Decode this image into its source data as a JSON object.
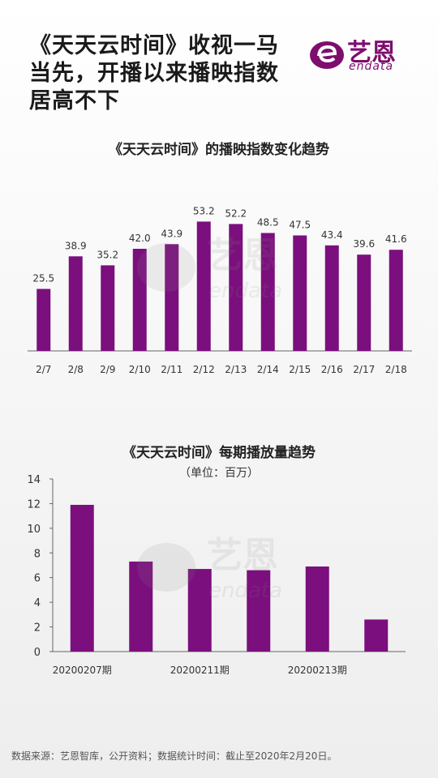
{
  "header": {
    "title": "《天天云时间》收视一马\n当先，开播以来播映指数\n居高不下",
    "logo_cn": "艺恩",
    "logo_en": "endata"
  },
  "colors": {
    "bar": "#7b0f7d",
    "brand": "#7d0e6e",
    "axis": "#666666"
  },
  "chart_data": [
    {
      "type": "bar",
      "title": "《天天云时间》的播映指数变化趋势",
      "categories": [
        "2/7",
        "2/8",
        "2/9",
        "2/10",
        "2/11",
        "2/12",
        "2/13",
        "2/14",
        "2/15",
        "2/16",
        "2/17",
        "2/18"
      ],
      "values": [
        25.5,
        38.9,
        35.2,
        42.0,
        43.9,
        53.2,
        52.2,
        48.5,
        47.5,
        43.4,
        39.6,
        41.6
      ],
      "value_labels": [
        "25.5",
        "38.9",
        "35.2",
        "42.0",
        "43.9",
        "53.2",
        "52.2",
        "48.5",
        "47.5",
        "43.4",
        "39.6",
        "41.6"
      ],
      "ylim": [
        0,
        60
      ],
      "grid": false
    },
    {
      "type": "bar",
      "title": "《天天云时间》每期播放量趋势",
      "subtitle": "（单位：百万）",
      "categories": [
        "20200207期",
        "",
        "20200211期",
        "",
        "20200213期",
        ""
      ],
      "values": [
        11.9,
        7.3,
        6.7,
        6.6,
        6.9,
        2.6
      ],
      "ylim": [
        0,
        14
      ],
      "yticks": [
        0,
        2,
        4,
        6,
        8,
        10,
        12,
        14
      ],
      "grid": false
    }
  ],
  "footer": {
    "source": "数据来源：艺恩智库，公开资料；数据统计时间：截止至2020年2月20日。"
  }
}
